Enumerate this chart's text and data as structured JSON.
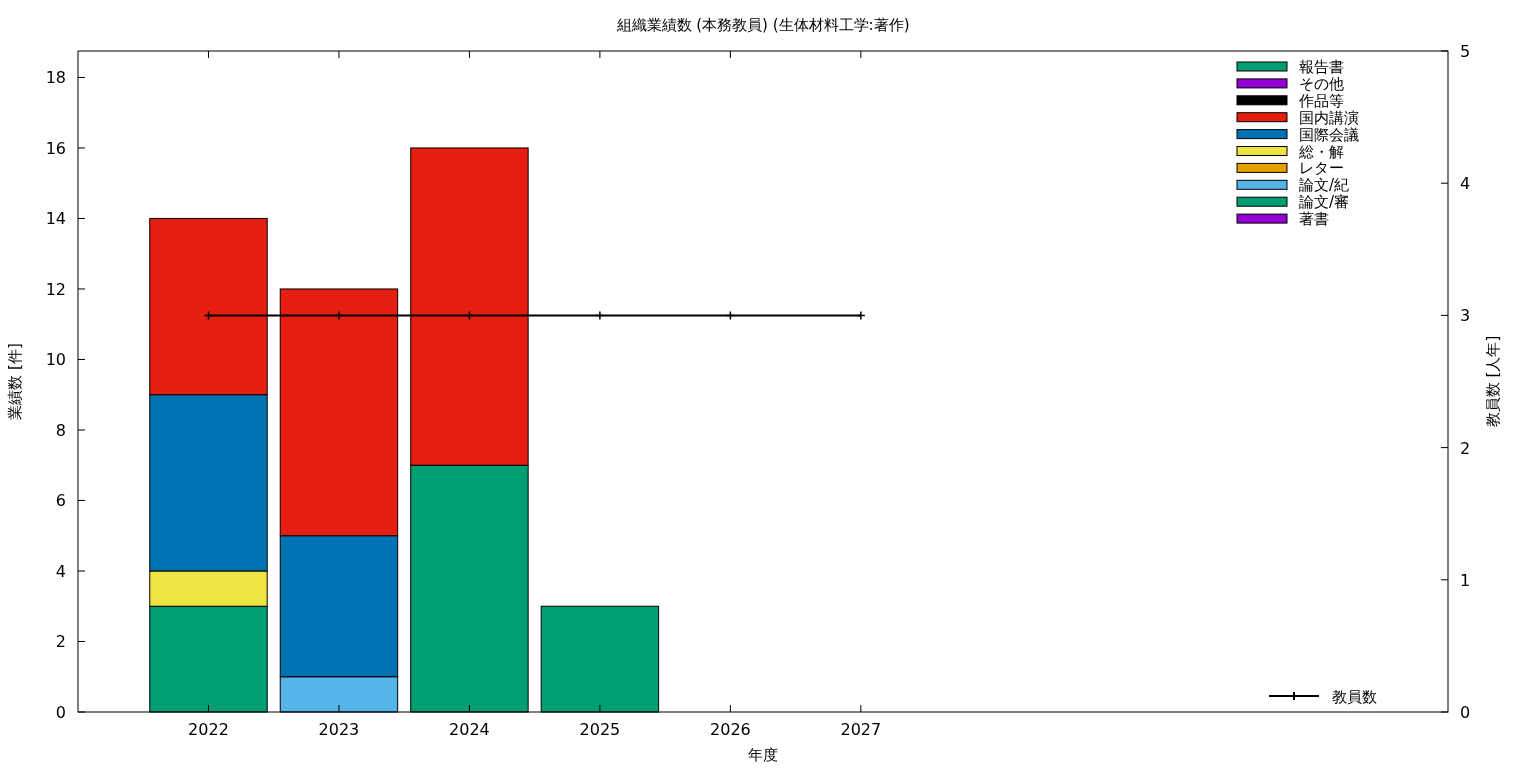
{
  "chart_data": {
    "type": "bar",
    "title": "組織業績数 (本務教員) (生体材料工学:著作)",
    "xlabel": "年度",
    "ylabel": "業績数 [件]",
    "y2label": "教員数 [人年]",
    "x": [
      2022,
      2023,
      2024,
      2025,
      2026,
      2027
    ],
    "xlim": [
      2021,
      2031.5
    ],
    "xticks": [
      2022,
      2023,
      2024,
      2025,
      2026,
      2027
    ],
    "ylim": [
      0,
      18.75
    ],
    "yticks": [
      0,
      2,
      4,
      6,
      8,
      10,
      12,
      14,
      16,
      18
    ],
    "y2lim": [
      0,
      5
    ],
    "y2ticks": [
      0,
      1,
      2,
      3,
      4,
      5
    ],
    "stacked": true,
    "legend": "right",
    "grid": false,
    "series": [
      {
        "name": "著書",
        "color": "#9400d3",
        "values": [
          0,
          0,
          0,
          0,
          0,
          0
        ]
      },
      {
        "name": "論文/審",
        "color": "#009e73",
        "values": [
          3,
          0,
          7,
          3,
          0,
          0
        ]
      },
      {
        "name": "論文/紀",
        "color": "#56b4e9",
        "values": [
          0,
          1,
          0,
          0,
          0,
          0
        ]
      },
      {
        "name": "レター",
        "color": "#e69f00",
        "values": [
          0,
          0,
          0,
          0,
          0,
          0
        ]
      },
      {
        "name": "総・解",
        "color": "#f0e442",
        "values": [
          1,
          0,
          0,
          0,
          0,
          0
        ]
      },
      {
        "name": "国際会議",
        "color": "#0072b2",
        "values": [
          5,
          4,
          0,
          0,
          0,
          0
        ]
      },
      {
        "name": "国内講演",
        "color": "#e51e10",
        "values": [
          5,
          7,
          9,
          0,
          0,
          0
        ]
      },
      {
        "name": "作品等",
        "color": "#000000",
        "values": [
          0,
          0,
          0,
          0,
          0,
          0
        ]
      },
      {
        "name": "その他",
        "color": "#9400d3",
        "values": [
          0,
          0,
          0,
          0,
          0,
          0
        ]
      },
      {
        "name": "報告書",
        "color": "#009e73",
        "values": [
          0,
          0,
          0,
          0,
          0,
          0
        ]
      },
      {
        "name": "教員数",
        "type": "line",
        "axis": "y2",
        "color": "#000000",
        "marker": "cross",
        "line_style": "solid",
        "values": [
          3,
          3,
          3,
          3,
          3,
          3
        ]
      }
    ]
  }
}
